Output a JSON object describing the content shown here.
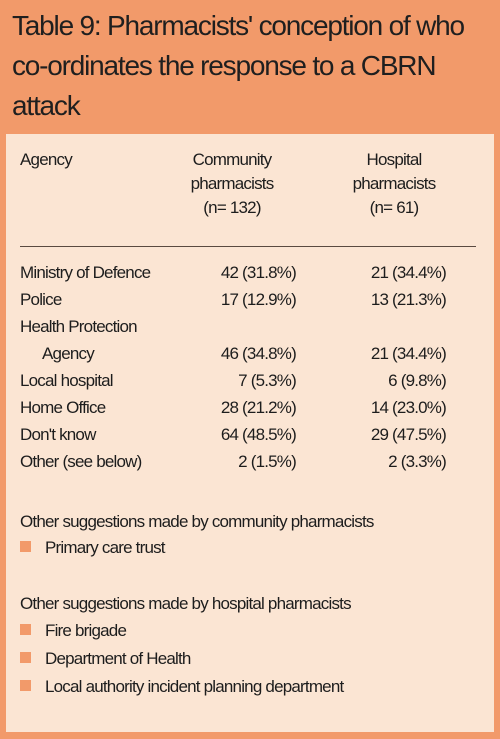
{
  "title": "Table 9: Pharmacists' conception of who co-ordinates the response to a CBRN attack",
  "table": {
    "headers": {
      "agency": "Agency",
      "community": [
        "Community",
        "pharmacists",
        "(n= 132)"
      ],
      "hospital": [
        "Hospital",
        "pharmacists",
        "(n= 61)"
      ]
    },
    "rows": [
      {
        "agency": "Ministry of Defence",
        "community": "42 (31.8%)",
        "hospital": "21 (34.4%)"
      },
      {
        "agency": "Police",
        "community": "17 (12.9%)",
        "hospital": "13 (21.3%)"
      },
      {
        "agency": "Health Protection",
        "community": "",
        "hospital": ""
      },
      {
        "agency": "Agency",
        "community": "46 (34.8%)",
        "hospital": "21 (34.4%)"
      },
      {
        "agency": "Local hospital",
        "community": "7 (5.3%)",
        "hospital": "6 (9.8%)"
      },
      {
        "agency": "Home Office",
        "community": "28 (21.2%)",
        "hospital": "14 (23.0%)"
      },
      {
        "agency": "Don't know",
        "community": "64 (48.5%)",
        "hospital": "29 (47.5%)"
      },
      {
        "agency": "Other (see below)",
        "community": "2 (1.5%)",
        "hospital": "2 (3.3%)"
      }
    ]
  },
  "community_suggestions": {
    "heading": "Other suggestions made by community pharmacists",
    "items": [
      "Primary care trust"
    ]
  },
  "hospital_suggestions": {
    "heading": "Other suggestions made by hospital pharmacists",
    "items": [
      "Fire brigade",
      "Department of Health",
      "Local authority incident planning department"
    ]
  },
  "colors": {
    "accent": "#f29a6a",
    "panel": "#fbe5d3"
  }
}
